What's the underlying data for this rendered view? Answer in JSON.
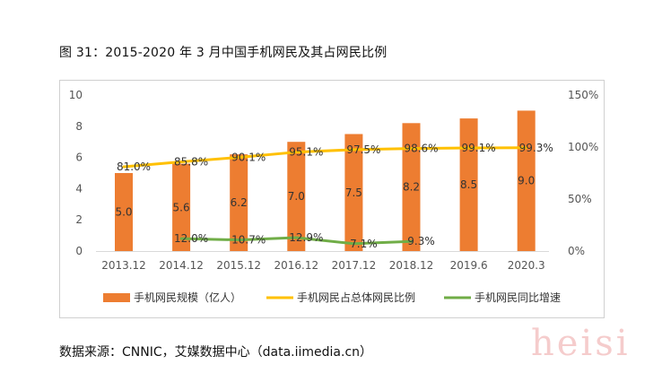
{
  "figure_title": "图 31：2015-2020 年 3 月中国手机网民及其占网民比例",
  "source_text": "数据来源：CNNIC，艾媒数据中心（data.iimedia.cn）",
  "watermark_text": "heisi",
  "chart_data": {
    "type": "bar",
    "categories": [
      "2013.12",
      "2014.12",
      "2015.12",
      "2016.12",
      "2017.12",
      "2018.12",
      "2019.6",
      "2020.3"
    ],
    "left_axis": {
      "min": 0,
      "max": 10,
      "ticks": [
        0,
        2,
        4,
        6,
        8,
        10
      ]
    },
    "right_axis": {
      "min": 0,
      "max": 150,
      "ticks": [
        "0%",
        "50%",
        "100%",
        "150%"
      ],
      "tick_values": [
        0,
        50,
        100,
        150
      ]
    },
    "series": [
      {
        "name": "手机网民规模（亿人）",
        "kind": "bar",
        "axis": "left",
        "color": "#ED7D31",
        "values": [
          5.0,
          5.6,
          6.2,
          7.0,
          7.5,
          8.2,
          8.5,
          9.0
        ],
        "labels": [
          "5.0",
          "5.6",
          "6.2",
          "7.0",
          "7.5",
          "8.2",
          "8.5",
          "9.0"
        ]
      },
      {
        "name": "手机网民占总体网民比例",
        "kind": "line",
        "axis": "right",
        "color": "#FFC000",
        "values": [
          81.0,
          85.8,
          90.1,
          95.1,
          97.5,
          98.6,
          99.1,
          99.3
        ],
        "labels": [
          "81.0%",
          "85.8%",
          "90.1%",
          "95.1%",
          "97.5%",
          "98.6%",
          "99.1%",
          "99.3%"
        ]
      },
      {
        "name": "手机网民同比增速",
        "kind": "line",
        "axis": "right",
        "color": "#70AD47",
        "values": [
          null,
          12.0,
          10.7,
          12.9,
          7.1,
          9.3,
          null,
          null
        ],
        "labels": [
          "",
          "12.0%",
          "10.7%",
          "12.9%",
          "7.1%",
          "9.3%",
          "",
          ""
        ]
      }
    ],
    "legend_position": "bottom",
    "grid": false
  }
}
